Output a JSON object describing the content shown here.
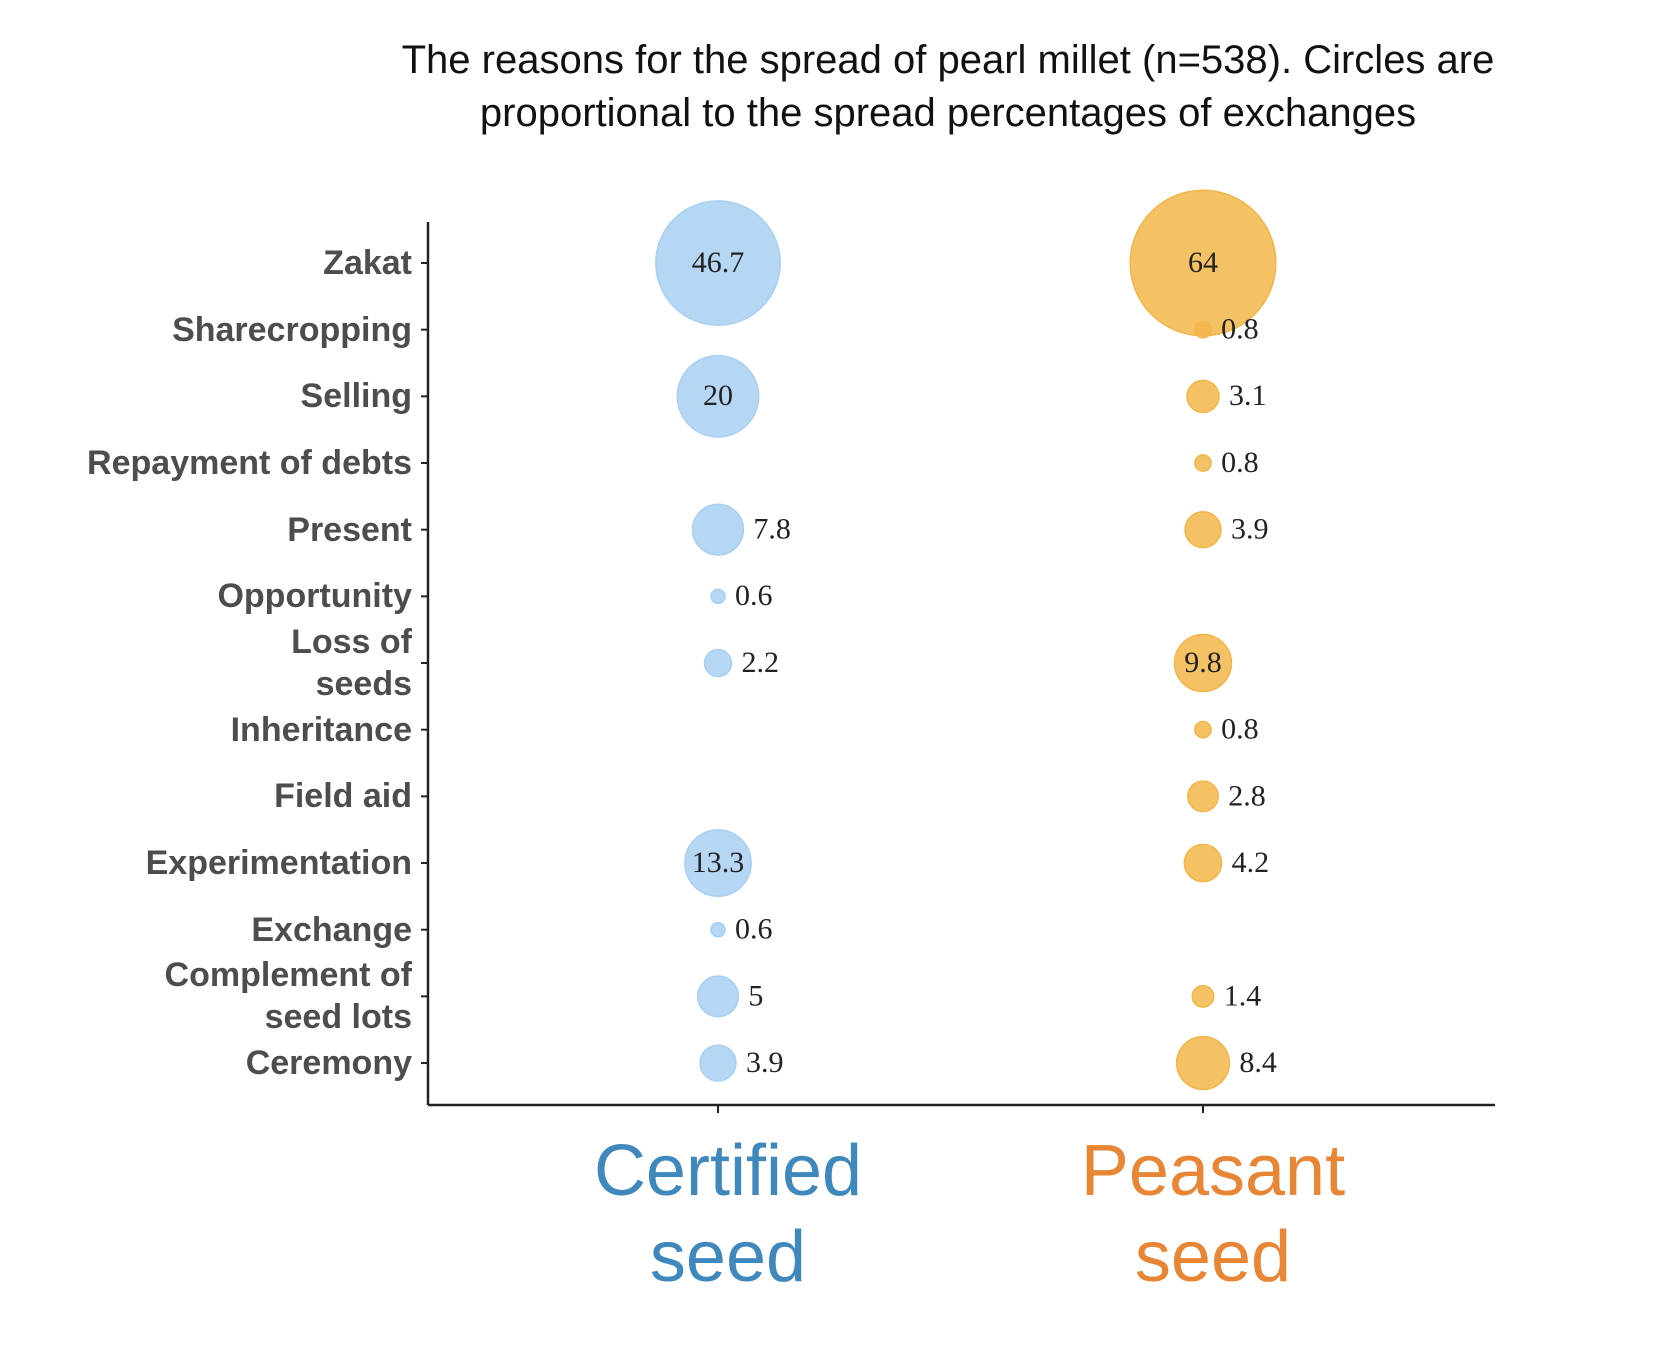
{
  "chart_data": {
    "type": "bubble",
    "title": "The reasons for the spread of pearl millet (n=538). Circles are\nproportional to the spread percentages of exchanges",
    "categories": [
      "Zakat",
      "Sharecropping",
      "Selling",
      "Repayment of debts",
      "Present",
      "Opportunity",
      "Loss of\nseeds",
      "Inheritance",
      "Field aid",
      "Experimentation",
      "Exchange",
      "Complement of\nseed lots",
      "Ceremony"
    ],
    "series": [
      {
        "name": "Certified seed",
        "color": "#a8d0f2",
        "label_color": "#3f88bd",
        "values": [
          46.7,
          null,
          20,
          null,
          7.8,
          0.6,
          2.2,
          null,
          null,
          13.3,
          0.6,
          5,
          3.9
        ]
      },
      {
        "name": "Peasant seed",
        "color": "#f2b64a",
        "label_color": "#e98636",
        "values": [
          64,
          0.8,
          3.1,
          0.8,
          3.9,
          null,
          9.8,
          0.8,
          2.8,
          4.2,
          null,
          1.4,
          8.4
        ]
      }
    ]
  }
}
